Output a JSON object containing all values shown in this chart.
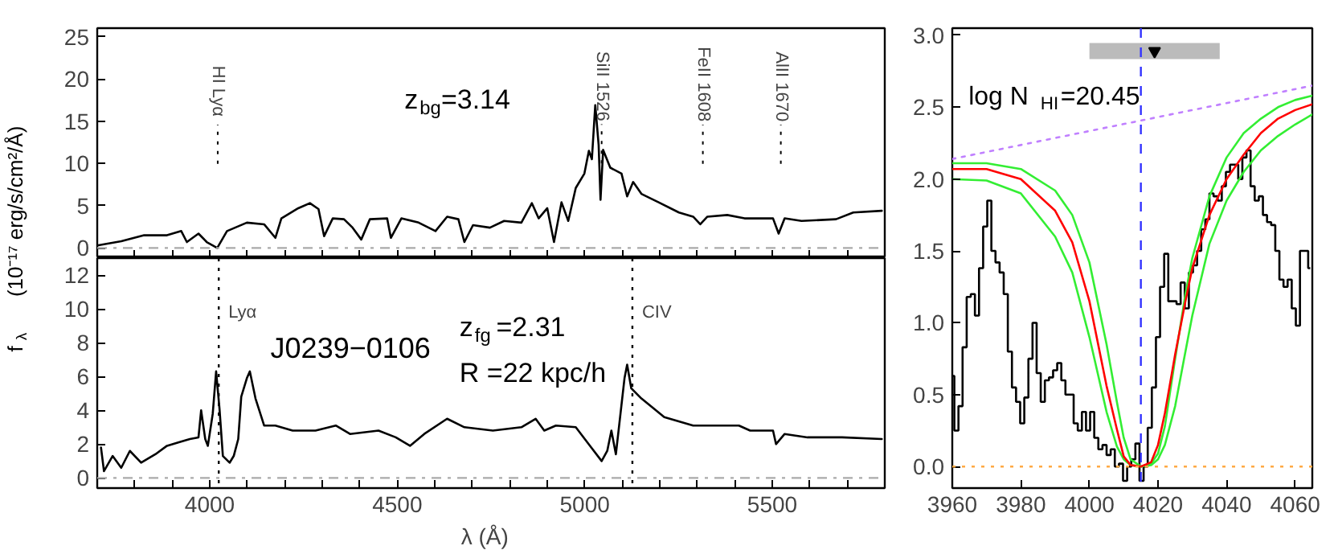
{
  "chart_data": [
    {
      "type": "line",
      "xlim": [
        3700,
        5800
      ],
      "ylim": [
        -1.2,
        26
      ],
      "xticks": [
        {
          "value": 3800,
          "label": null
        },
        {
          "value": 3900,
          "label": null
        },
        {
          "value": 4000,
          "label": null
        },
        {
          "value": 4100,
          "label": null
        },
        {
          "value": 4200,
          "label": null
        },
        {
          "value": 4300,
          "label": null
        },
        {
          "value": 4400,
          "label": null
        },
        {
          "value": 4500,
          "label": null
        },
        {
          "value": 4600,
          "label": null
        },
        {
          "value": 4700,
          "label": null
        },
        {
          "value": 4800,
          "label": null
        },
        {
          "value": 4900,
          "label": null
        },
        {
          "value": 5000,
          "label": null
        },
        {
          "value": 5100,
          "label": null
        },
        {
          "value": 5200,
          "label": null
        },
        {
          "value": 5300,
          "label": null
        },
        {
          "value": 5400,
          "label": null
        },
        {
          "value": 5500,
          "label": null
        },
        {
          "value": 5600,
          "label": null
        },
        {
          "value": 5700,
          "label": null
        }
      ],
      "yticks": [
        0,
        5,
        10,
        15,
        20,
        25
      ],
      "tick_labels": "y",
      "ylabel": "f$_{λ}$   (10⁻¹⁷ erg/s/cm²/Å)",
      "series": [
        {
          "color": "#000000",
          "x": [
            3700,
            3764,
            3825,
            3886,
            3924,
            3939,
            3970,
            3992,
            4020,
            4046,
            4099,
            4145,
            4175,
            4191,
            4236,
            4267,
            4290,
            4305,
            4328,
            4358,
            4381,
            4404,
            4427,
            4473,
            4483,
            4511,
            4557,
            4602,
            4633,
            4663,
            4679,
            4702,
            4747,
            4785,
            4831,
            4859,
            4877,
            4900,
            4918,
            4938,
            4956,
            4976,
            4999,
            5011,
            5019,
            5028,
            5037,
            5042,
            5049,
            5068,
            5098,
            5113,
            5129,
            5151,
            5197,
            5251,
            5289,
            5308,
            5327,
            5380,
            5426,
            5502,
            5517,
            5533,
            5578,
            5670,
            5716,
            5792
          ],
          "values": [
            0.3,
            0.8,
            1.5,
            1.5,
            2.0,
            0.7,
            1.7,
            0.7,
            0,
            2.0,
            3.0,
            2.8,
            1.2,
            3.5,
            4.7,
            5.3,
            4.6,
            1.4,
            3.5,
            3.4,
            2.4,
            1.0,
            3.4,
            3.5,
            1.2,
            3.5,
            3.0,
            2.0,
            3.7,
            3.4,
            0.7,
            2.7,
            2.4,
            3.2,
            3.0,
            5.3,
            3.5,
            4.7,
            0.7,
            5.4,
            3.2,
            7.1,
            8.8,
            11.5,
            10.5,
            16.9,
            12.2,
            5.7,
            11.6,
            9.5,
            8.8,
            6.1,
            7.8,
            6.4,
            5.4,
            4.2,
            3.7,
            2.8,
            3.7,
            3.9,
            3.5,
            3.5,
            1.7,
            3.5,
            3.2,
            3.4,
            4.2,
            4.4
          ]
        }
      ],
      "ref_lines": [
        {
          "axis": "y",
          "value": 0,
          "color": "#aaaaaa",
          "line_style": "dashdot"
        }
      ],
      "annotations": [
        "z$_{bg}$=3.14",
        "HI  Lyα",
        {
          "text": "SiII 1526",
          "x": 5045,
          "y": 10
        },
        "FeII 1608",
        "AlII 1670"
      ]
    },
    {
      "type": "line",
      "xlim": [
        3700,
        5800
      ],
      "ylim": [
        -0.6,
        13
      ],
      "xticks": [
        {
          "value": 3800,
          "label": null
        },
        {
          "value": 3900,
          "label": null
        },
        4000,
        {
          "value": 4100,
          "label": null
        },
        {
          "value": 4200,
          "label": null
        },
        {
          "value": 4300,
          "label": null
        },
        {
          "value": 4400,
          "label": null
        },
        4500,
        {
          "value": 4600,
          "label": null
        },
        {
          "value": 4700,
          "label": null
        },
        {
          "value": 4800,
          "label": null
        },
        {
          "value": 4900,
          "label": null
        },
        5000,
        {
          "value": 5100,
          "label": null
        },
        {
          "value": 5200,
          "label": null
        },
        {
          "value": 5300,
          "label": null
        },
        {
          "value": 5400,
          "label": null
        },
        5500,
        {
          "value": 5600,
          "label": null
        },
        {
          "value": 5700,
          "label": null
        }
      ],
      "yticks": [
        0,
        2,
        4,
        6,
        8,
        10,
        12
      ],
      "xlabel": "λ   (Å)",
      "series": [
        {
          "color": "#000000",
          "x": [
            3710,
            3718,
            3741,
            3764,
            3787,
            3817,
            3855,
            3886,
            3916,
            3947,
            3970,
            3977,
            3988,
            3995,
            4008,
            4017,
            4026,
            4035,
            4053,
            4064,
            4076,
            4084,
            4099,
            4107,
            4122,
            4145,
            4175,
            4221,
            4282,
            4336,
            4374,
            4450,
            4496,
            4534,
            4572,
            4633,
            4679,
            4755,
            4831,
            4869,
            4892,
            4923,
            4976,
            5014,
            5045,
            5060,
            5071,
            5083,
            5106,
            5113,
            5124,
            5151,
            5212,
            5289,
            5411,
            5441,
            5502,
            5510,
            5533,
            5594,
            5686,
            5792
          ],
          "values": [
            1.8,
            0.4,
            1.3,
            0.6,
            1.6,
            0.9,
            1.4,
            1.9,
            2.1,
            2.3,
            2.4,
            4.0,
            2.3,
            1.9,
            3.8,
            6.3,
            4.1,
            1.3,
            0.9,
            1.3,
            2.3,
            4.8,
            5.9,
            6.3,
            4.7,
            3.1,
            3.1,
            2.8,
            2.8,
            3.1,
            2.6,
            2.8,
            2.4,
            1.9,
            2.6,
            3.5,
            3.0,
            2.8,
            3.0,
            3.5,
            2.8,
            3.1,
            3.0,
            1.9,
            1.0,
            1.6,
            2.8,
            1.4,
            5.9,
            6.7,
            5.3,
            4.7,
            3.6,
            3.1,
            3.1,
            2.8,
            2.8,
            2.0,
            2.6,
            2.4,
            2.4,
            2.3
          ]
        }
      ],
      "ref_lines": [
        {
          "axis": "y",
          "value": 0,
          "color": "#aaaaaa",
          "line_style": "dashdot"
        },
        {
          "axis": "x",
          "value": 4024,
          "label": "Lyα",
          "color": "#000000",
          "line_style": "dotted"
        },
        {
          "axis": "x",
          "value": 5127,
          "label": "CIV",
          "color": "#000000",
          "line_style": "dotted"
        }
      ],
      "annotations": [
        "J0239−0106",
        "z$_{fg}$=2.31",
        "R =22 kpc/h"
      ]
    },
    {
      "type": "line",
      "xlim": [
        3960,
        4065
      ],
      "ylim": [
        -0.15,
        3.05
      ],
      "xticks": [
        3960,
        3980,
        4000,
        4020,
        4040,
        4060
      ],
      "yticks": [
        {
          "value": 0,
          "label": "0.0"
        },
        {
          "value": 0.5,
          "label": "0.5"
        },
        {
          "value": 1,
          "label": "1.0"
        },
        {
          "value": 1.5,
          "label": "1.5"
        },
        {
          "value": 2,
          "label": "2.0"
        },
        {
          "value": 2.5,
          "label": "2.5"
        },
        {
          "value": 3,
          "label": "3.0"
        }
      ],
      "series": [
        {
          "type": "step",
          "color": "#000000",
          "x": [
            3960,
            3961.2,
            3962.4,
            3963.6,
            3964.8,
            3966,
            3967.2,
            3968.4,
            3969.6,
            3970.8,
            3972,
            3973.2,
            3974.4,
            3975.6,
            3976.8,
            3978,
            3979.2,
            3980.4,
            3981.6,
            3982.8,
            3984,
            3985.2,
            3986.4,
            3987.6,
            3988.8,
            3990,
            3991.2,
            3992.4,
            3993.6,
            3994.8,
            3996,
            3997.2,
            3998.4,
            3999.6,
            4000.8,
            4002,
            4003.2,
            4004.4,
            4005.6,
            4006.8,
            4008,
            4009.2,
            4010.4,
            4011.6,
            4012.8,
            4014,
            4015.2,
            4016.4,
            4017.6,
            4018.8,
            4020,
            4021.2,
            4022.4,
            4023.6,
            4024.8,
            4026,
            4027.2,
            4028.4,
            4029.6,
            4030.8,
            4032,
            4033.2,
            4034.4,
            4035.6,
            4036.8,
            4038,
            4039.2,
            4040.4,
            4041.6,
            4042.8,
            4044,
            4045.2,
            4046.4,
            4047.6,
            4048.8,
            4050,
            4051.2,
            4052.4,
            4053.6,
            4054.8,
            4056,
            4057.2,
            4058.4,
            4059.6,
            4060.8,
            4062,
            4063.2,
            4064.4
          ],
          "values": [
            0.63,
            0.25,
            0.42,
            0.83,
            1.18,
            1.2,
            1.05,
            1.38,
            1.67,
            1.85,
            1.5,
            1.42,
            1.35,
            1.2,
            0.8,
            0.55,
            0.45,
            0.3,
            0.48,
            0.75,
            1.0,
            0.65,
            0.45,
            0.6,
            0.62,
            0.67,
            0.72,
            0.6,
            0.5,
            0.5,
            0.3,
            0.25,
            0.38,
            0.25,
            0.38,
            0.2,
            0.12,
            0.15,
            0.08,
            0.12,
            0.0,
            0.02,
            -0.1,
            0.0,
            0.05,
            0.16,
            -0.1,
            0.0,
            0.27,
            0.55,
            0.9,
            1.25,
            1.48,
            1.15,
            1.15,
            1.13,
            1.28,
            1.1,
            1.35,
            1.4,
            1.5,
            1.65,
            1.72,
            1.9,
            1.88,
            1.85,
            1.95,
            2.05,
            2.1,
            2.1,
            2.0,
            2.15,
            2.2,
            1.95,
            1.85,
            1.88,
            1.75,
            1.7,
            1.68,
            1.5,
            1.3,
            1.25,
            1.3,
            1.1,
            0.98,
            1.5,
            1.5,
            1.38
          ]
        },
        {
          "color": "#33ee33",
          "x": [
            3960,
            3970,
            3980,
            3990,
            3995,
            4000,
            4005,
            4008,
            4010,
            4012,
            4015,
            4018,
            4020,
            4022,
            4025,
            4028,
            4030,
            4035,
            4040,
            4045,
            4050,
            4055,
            4060,
            4065
          ],
          "values": [
            2.11,
            2.11,
            2.07,
            1.92,
            1.75,
            1.42,
            0.85,
            0.45,
            0.2,
            0.05,
            0,
            0.02,
            0.09,
            0.28,
            0.75,
            1.2,
            1.45,
            1.88,
            2.15,
            2.32,
            2.42,
            2.5,
            2.55,
            2.58
          ]
        },
        {
          "color": "#33ee33",
          "x": [
            3960,
            3970,
            3980,
            3990,
            3995,
            4000,
            4005,
            4008,
            4010,
            4012,
            4015,
            4018,
            4020,
            4022,
            4025,
            4028,
            4030,
            4035,
            4040,
            4045,
            4050,
            4055,
            4060,
            4065
          ],
          "values": [
            2.0,
            1.99,
            1.9,
            1.6,
            1.35,
            0.9,
            0.38,
            0.14,
            0.05,
            0.01,
            0,
            0.01,
            0.05,
            0.15,
            0.42,
            0.8,
            1.05,
            1.55,
            1.85,
            2.05,
            2.2,
            2.3,
            2.38,
            2.45
          ]
        },
        {
          "color": "#ff0000",
          "x": [
            3960,
            3970,
            3980,
            3990,
            3995,
            4000,
            4005,
            4008,
            4010,
            4012,
            4015,
            4018,
            4020,
            4022,
            4025,
            4028,
            4030,
            4035,
            4040,
            4045,
            4050,
            4055,
            4060,
            4065
          ],
          "values": [
            2.07,
            2.07,
            2.0,
            1.78,
            1.56,
            1.15,
            0.56,
            0.26,
            0.07,
            0.01,
            0,
            0.03,
            0.15,
            0.37,
            0.78,
            1.15,
            1.38,
            1.75,
            2.0,
            2.17,
            2.32,
            2.42,
            2.48,
            2.52
          ]
        },
        {
          "color": "#c080ff",
          "line_style": "dotted",
          "x": [
            3960,
            4065
          ],
          "values": [
            2.14,
            2.65
          ]
        },
        {
          "type": "scatter",
          "color": "#000000",
          "marker": "triangle",
          "x": [
            4019
          ],
          "values": [
            2.89
          ],
          "xerrors": [
            [
              4000,
              4038
            ]
          ]
        }
      ],
      "ref_lines": [
        {
          "axis": "y",
          "value": 0,
          "color": "#ffaa44",
          "line_style": "dotted"
        },
        {
          "axis": "x",
          "value": 4015,
          "color": "#3333ff",
          "line_style": "dashed"
        }
      ],
      "annotations": [
        "log N$_{HI}$=20.45"
      ]
    }
  ]
}
